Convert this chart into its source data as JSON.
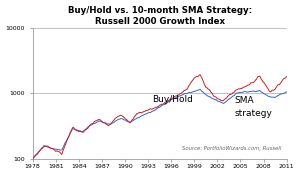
{
  "title_line1": "Buy/Hold vs. 10-month SMA Strategy:",
  "title_line2": "Russell 2000 Growth Index",
  "xlabel_ticks": [
    1978,
    1981,
    1984,
    1987,
    1990,
    1993,
    1996,
    1999,
    2002,
    2005,
    2008,
    2011
  ],
  "ylim": [
    100,
    10000
  ],
  "yticks": [
    100,
    1000,
    10000
  ],
  "buy_hold_color": "#cc2222",
  "sma_color": "#3366cc",
  "source_text": "Source: PortfolioWizards.com, Russell",
  "annotation_buyhold": "Buy/Hold",
  "annotation_sma_line1": "SMA",
  "annotation_sma_line2": "strategy",
  "background_color": "#ffffff",
  "grid_color": "#aaaaaa",
  "bh_anchors_x": [
    1978.0,
    1979.5,
    1980.8,
    1981.8,
    1983.2,
    1984.5,
    1985.5,
    1986.7,
    1987.1,
    1987.9,
    1989.5,
    1990.7,
    1991.5,
    1993.0,
    1994.0,
    1996.0,
    1998.0,
    1999.0,
    1999.8,
    2000.5,
    2001.5,
    2002.8,
    2003.5,
    2004.5,
    2005.5,
    2007.5,
    2008.8,
    2009.5,
    2010.5,
    2011.0
  ],
  "bh_anchors_y": [
    100,
    160,
    145,
    125,
    310,
    255,
    320,
    380,
    330,
    290,
    430,
    360,
    460,
    530,
    570,
    800,
    1050,
    1600,
    1750,
    1100,
    850,
    680,
    820,
    1000,
    1100,
    1650,
    1000,
    1100,
    1600,
    1800
  ],
  "sma_anchors_x": [
    1978.0,
    1979.5,
    1980.8,
    1981.8,
    1983.2,
    1984.5,
    1985.5,
    1986.7,
    1987.1,
    1987.9,
    1989.5,
    1990.7,
    1991.5,
    1993.0,
    1994.0,
    1996.0,
    1998.0,
    1999.0,
    1999.8,
    2000.5,
    2001.5,
    2002.8,
    2003.5,
    2004.5,
    2005.5,
    2007.5,
    2008.8,
    2009.5,
    2010.5,
    2011.0
  ],
  "sma_anchors_y": [
    100,
    155,
    148,
    138,
    300,
    270,
    335,
    390,
    375,
    360,
    445,
    395,
    465,
    530,
    565,
    780,
    960,
    1020,
    1060,
    900,
    800,
    700,
    820,
    960,
    1040,
    1100,
    870,
    870,
    1000,
    1050
  ]
}
